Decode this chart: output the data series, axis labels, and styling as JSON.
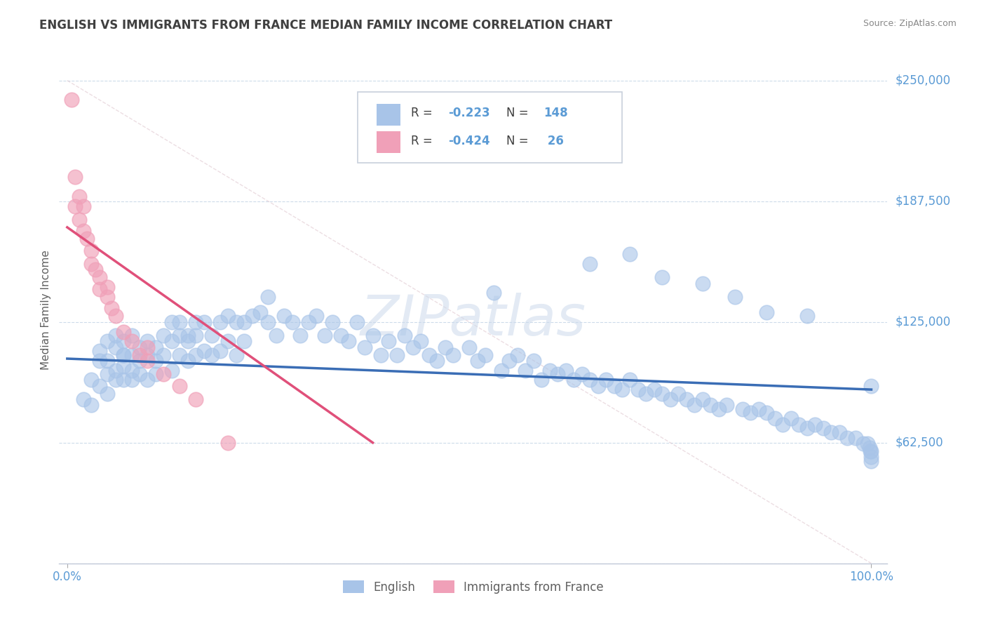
{
  "title": "ENGLISH VS IMMIGRANTS FROM FRANCE MEDIAN FAMILY INCOME CORRELATION CHART",
  "source": "Source: ZipAtlas.com",
  "ylabel": "Median Family Income",
  "ylim": [
    0,
    262500
  ],
  "xlim": [
    -0.01,
    1.02
  ],
  "ytick_vals": [
    0,
    62500,
    125000,
    187500,
    250000
  ],
  "ytick_labels": [
    "",
    "$62,500",
    "$125,000",
    "$187,500",
    "$250,000"
  ],
  "watermark": "ZIPatlas",
  "english_color": "#a8c4e8",
  "france_color": "#f0a0b8",
  "english_line_color": "#3a6db5",
  "france_line_color": "#e0507a",
  "diag_line_color": "#e0c8d0",
  "title_color": "#404040",
  "axis_label_color": "#606060",
  "tick_label_color": "#5b9bd5",
  "grid_color": "#c8d8e8",
  "background_color": "#ffffff",
  "legend_blue_label": "R = -0.223   N = 148",
  "legend_pink_label": "R = -0.424   N =  26",
  "bottom_legend": [
    "English",
    "Immigrants from France"
  ],
  "eng_trend_x": [
    0.0,
    1.0
  ],
  "eng_trend_y": [
    106000,
    90000
  ],
  "fra_trend_x": [
    0.0,
    0.38
  ],
  "fra_trend_y": [
    174000,
    62500
  ],
  "eng_x": [
    0.02,
    0.03,
    0.03,
    0.04,
    0.04,
    0.04,
    0.05,
    0.05,
    0.05,
    0.05,
    0.06,
    0.06,
    0.06,
    0.06,
    0.07,
    0.07,
    0.07,
    0.07,
    0.07,
    0.08,
    0.08,
    0.08,
    0.08,
    0.09,
    0.09,
    0.09,
    0.1,
    0.1,
    0.1,
    0.11,
    0.11,
    0.11,
    0.12,
    0.12,
    0.13,
    0.13,
    0.13,
    0.14,
    0.14,
    0.14,
    0.15,
    0.15,
    0.15,
    0.16,
    0.16,
    0.16,
    0.17,
    0.17,
    0.18,
    0.18,
    0.19,
    0.19,
    0.2,
    0.2,
    0.21,
    0.21,
    0.22,
    0.22,
    0.23,
    0.24,
    0.25,
    0.25,
    0.26,
    0.27,
    0.28,
    0.29,
    0.3,
    0.31,
    0.32,
    0.33,
    0.34,
    0.35,
    0.36,
    0.37,
    0.38,
    0.39,
    0.4,
    0.41,
    0.42,
    0.43,
    0.44,
    0.45,
    0.46,
    0.47,
    0.48,
    0.5,
    0.51,
    0.52,
    0.54,
    0.55,
    0.56,
    0.57,
    0.58,
    0.59,
    0.6,
    0.61,
    0.62,
    0.63,
    0.64,
    0.65,
    0.66,
    0.67,
    0.68,
    0.69,
    0.7,
    0.71,
    0.72,
    0.73,
    0.74,
    0.75,
    0.76,
    0.77,
    0.78,
    0.79,
    0.8,
    0.81,
    0.82,
    0.84,
    0.85,
    0.86,
    0.87,
    0.88,
    0.89,
    0.9,
    0.91,
    0.92,
    0.93,
    0.94,
    0.95,
    0.96,
    0.97,
    0.98,
    0.99,
    0.995,
    0.998,
    0.999,
    0.9995,
    0.9998,
    0.9999,
    1.0,
    0.53,
    0.65,
    0.7,
    0.74,
    0.79,
    0.83,
    0.87,
    0.92
  ],
  "eng_y": [
    85000,
    95000,
    82000,
    105000,
    92000,
    110000,
    98000,
    88000,
    105000,
    115000,
    112000,
    100000,
    118000,
    95000,
    108000,
    102000,
    115000,
    95000,
    108000,
    100000,
    118000,
    95000,
    108000,
    112000,
    105000,
    98000,
    115000,
    108000,
    95000,
    112000,
    105000,
    98000,
    118000,
    108000,
    125000,
    115000,
    100000,
    118000,
    108000,
    125000,
    115000,
    105000,
    118000,
    125000,
    108000,
    118000,
    110000,
    125000,
    118000,
    108000,
    125000,
    110000,
    128000,
    115000,
    125000,
    108000,
    125000,
    115000,
    128000,
    130000,
    125000,
    138000,
    118000,
    128000,
    125000,
    118000,
    125000,
    128000,
    118000,
    125000,
    118000,
    115000,
    125000,
    112000,
    118000,
    108000,
    115000,
    108000,
    118000,
    112000,
    115000,
    108000,
    105000,
    112000,
    108000,
    112000,
    105000,
    108000,
    100000,
    105000,
    108000,
    100000,
    105000,
    95000,
    100000,
    98000,
    100000,
    95000,
    98000,
    95000,
    92000,
    95000,
    92000,
    90000,
    95000,
    90000,
    88000,
    90000,
    88000,
    85000,
    88000,
    85000,
    82000,
    85000,
    82000,
    80000,
    82000,
    80000,
    78000,
    80000,
    78000,
    75000,
    72000,
    75000,
    72000,
    70000,
    72000,
    70000,
    68000,
    68000,
    65000,
    65000,
    62000,
    62000,
    60000,
    58000,
    58000,
    55000,
    53000,
    92000,
    140000,
    155000,
    160000,
    148000,
    145000,
    138000,
    130000,
    128000
  ],
  "fra_x": [
    0.005,
    0.01,
    0.01,
    0.015,
    0.015,
    0.02,
    0.02,
    0.025,
    0.03,
    0.03,
    0.035,
    0.04,
    0.04,
    0.05,
    0.05,
    0.055,
    0.06,
    0.07,
    0.08,
    0.09,
    0.1,
    0.1,
    0.12,
    0.14,
    0.16,
    0.2
  ],
  "fra_y": [
    240000,
    200000,
    185000,
    190000,
    178000,
    185000,
    172000,
    168000,
    162000,
    155000,
    152000,
    148000,
    142000,
    143000,
    138000,
    132000,
    128000,
    120000,
    115000,
    108000,
    105000,
    112000,
    98000,
    92000,
    85000,
    62500
  ]
}
